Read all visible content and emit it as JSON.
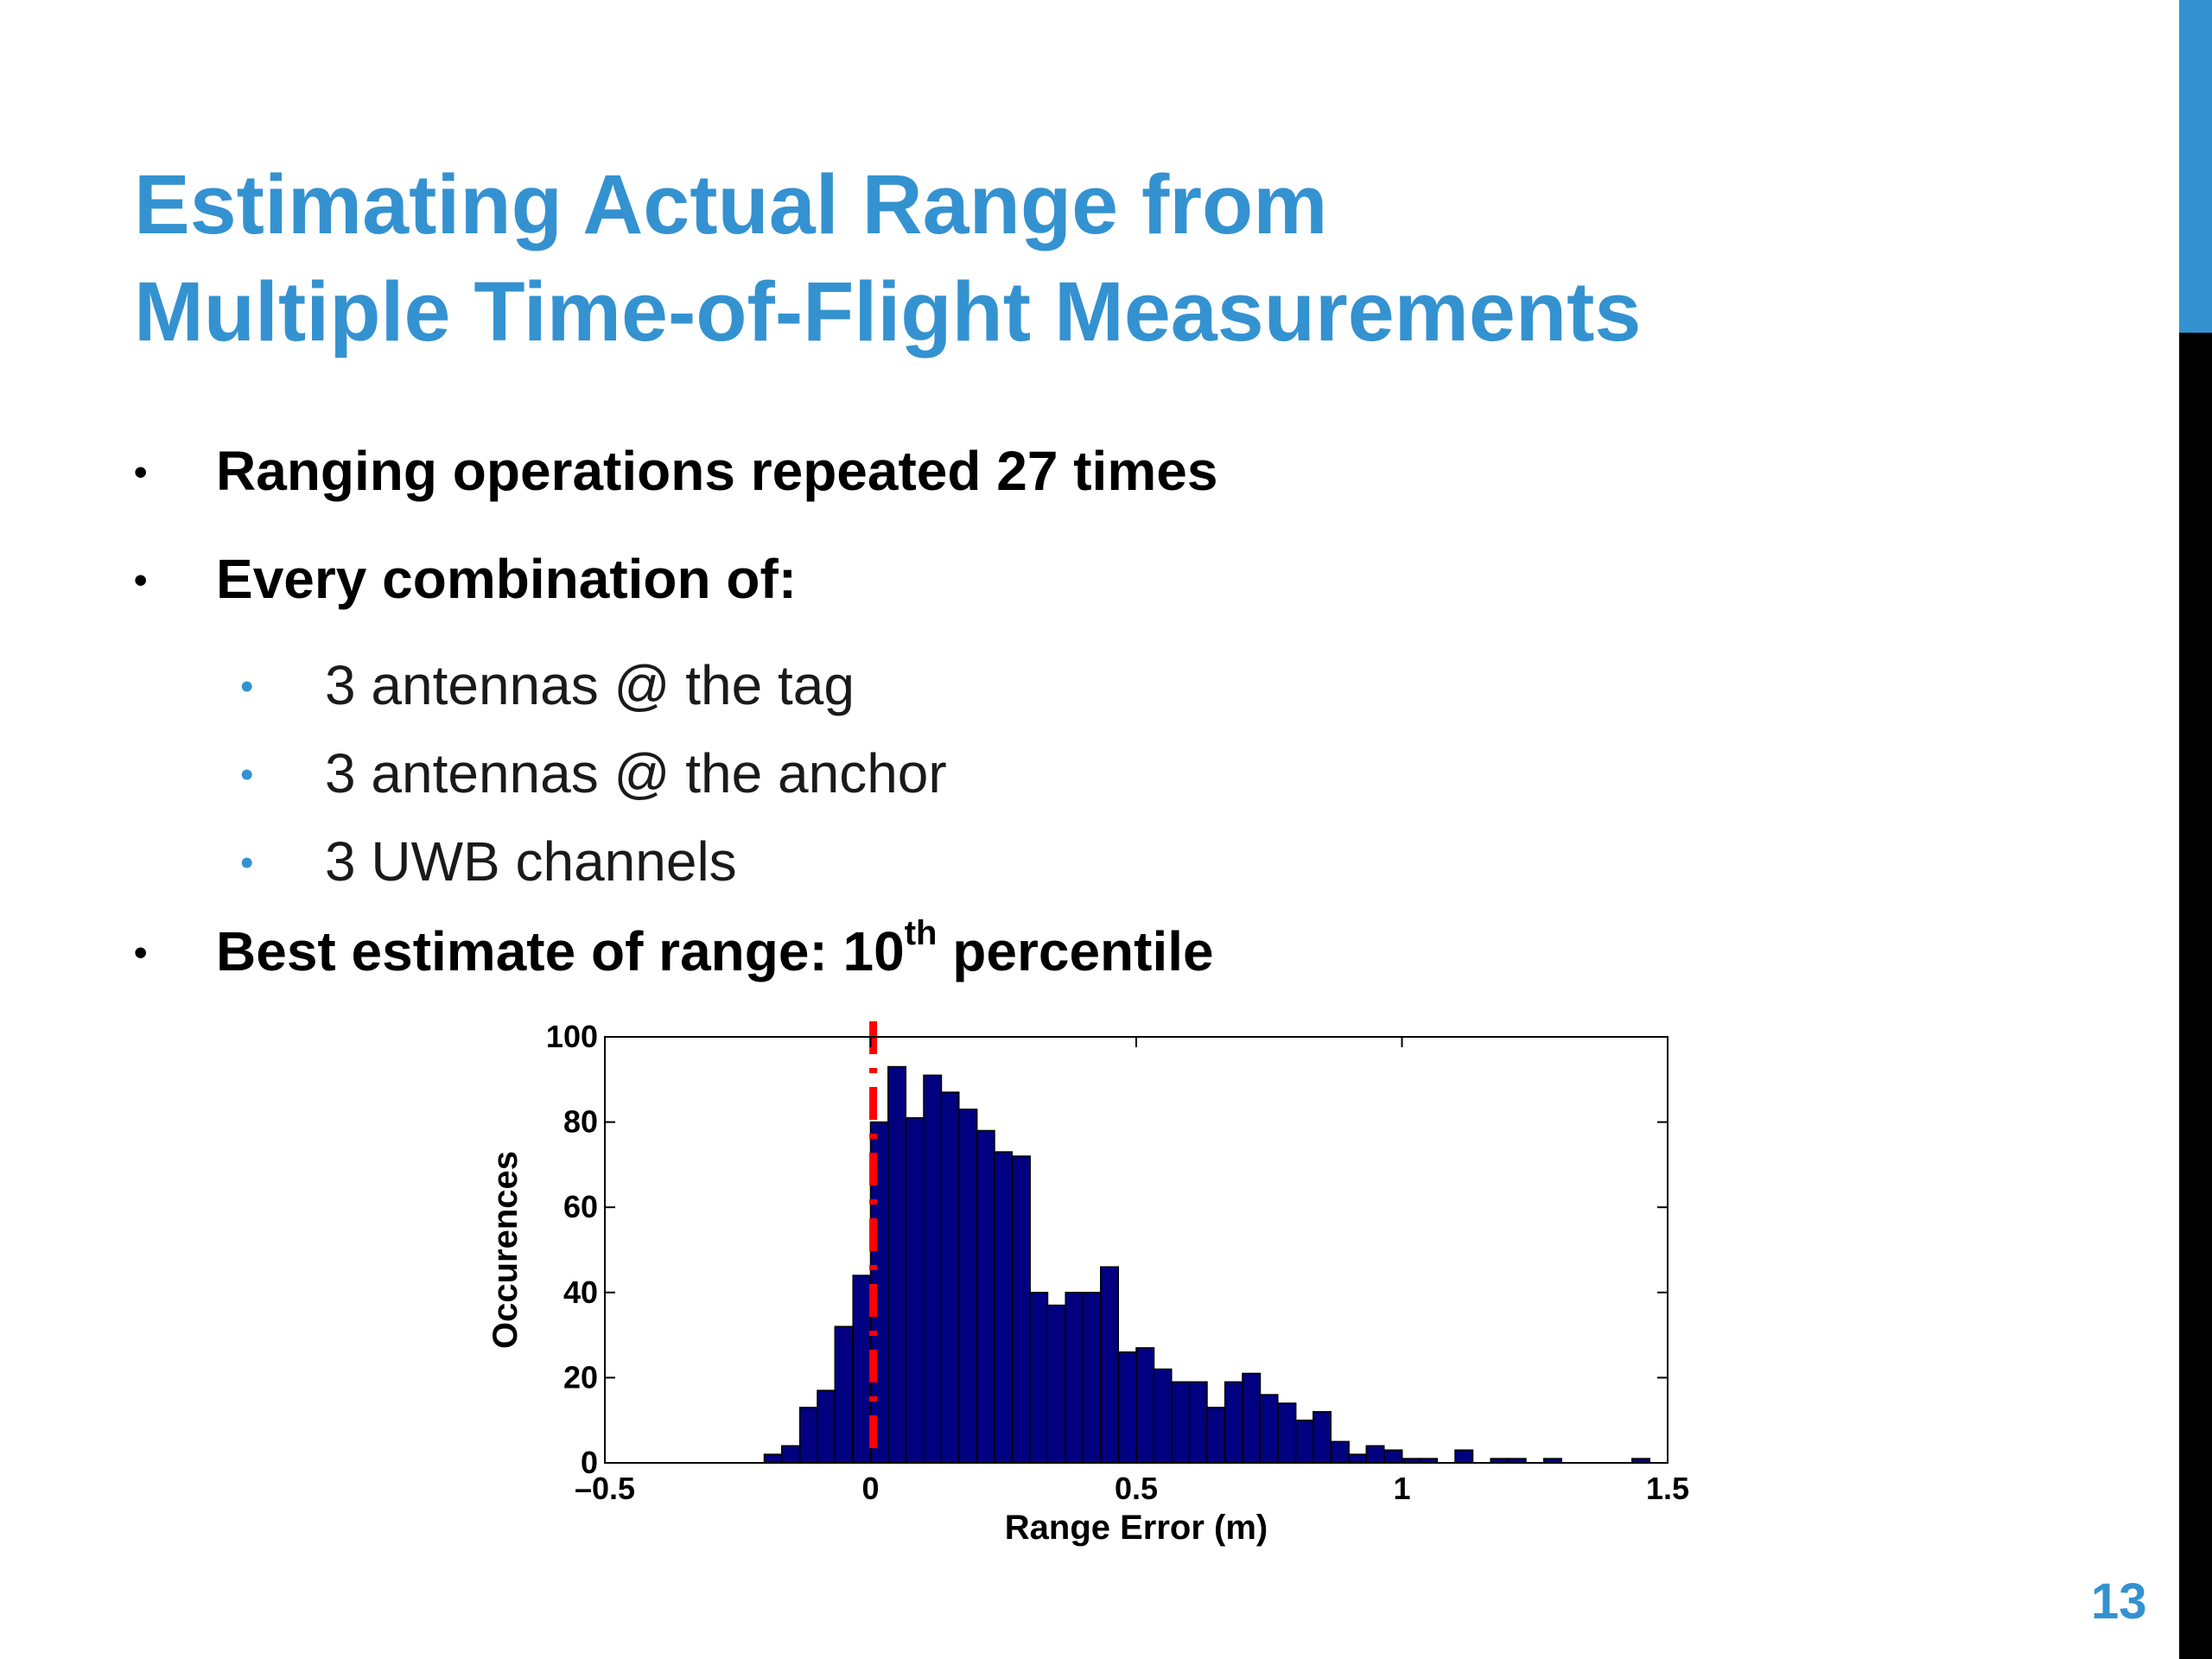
{
  "slide": {
    "title_line1": "Estimating Actual Range from",
    "title_line2": "Multiple Time-of-Flight Measurements",
    "bullets": [
      "Ranging operations repeated 27 times",
      "Every combination of:",
      "Best estimate of range: 10",
      "th",
      " percentile"
    ],
    "sub_bullets": [
      "3 antennas @ the tag",
      "3 antennas @ the anchor",
      "3 UWB channels"
    ],
    "page_number": "13"
  },
  "colors": {
    "accent": "#3492d1",
    "sidebar_bottom": "#000000",
    "bar_fill": "#000080",
    "marker": "#ff0000",
    "text": "#000000"
  },
  "chart_data": {
    "type": "bar",
    "xlabel": "Range Error (m)",
    "ylabel": "Occurences",
    "xlim": [
      -0.5,
      1.5
    ],
    "ylim": [
      0,
      100
    ],
    "xticks": [
      -0.5,
      0,
      0.5,
      1,
      1.5
    ],
    "xtick_labels": [
      "–0.5",
      "0",
      "0.5",
      "1",
      "1.5"
    ],
    "yticks": [
      0,
      20,
      40,
      60,
      80,
      100
    ],
    "ytick_labels": [
      "0",
      "20",
      "40",
      "60",
      "80",
      "100"
    ],
    "grid": false,
    "bin_width": 0.0333,
    "bin_starts": [
      -0.2,
      -0.167,
      -0.133,
      -0.1,
      -0.067,
      -0.033,
      0.0,
      0.033,
      0.067,
      0.1,
      0.133,
      0.167,
      0.2,
      0.233,
      0.267,
      0.3,
      0.333,
      0.367,
      0.4,
      0.433,
      0.467,
      0.5,
      0.533,
      0.567,
      0.6,
      0.633,
      0.667,
      0.7,
      0.733,
      0.767,
      0.8,
      0.833,
      0.867,
      0.9,
      0.933,
      0.967,
      1.0,
      1.033,
      1.067,
      1.1,
      1.133,
      1.167,
      1.2,
      1.233,
      1.267,
      1.3,
      1.333,
      1.367,
      1.4,
      1.433
    ],
    "values": [
      2,
      4,
      13,
      17,
      32,
      44,
      80,
      93,
      81,
      91,
      87,
      83,
      78,
      73,
      72,
      40,
      37,
      40,
      40,
      46,
      26,
      27,
      22,
      19,
      19,
      13,
      19,
      21,
      16,
      14,
      10,
      12,
      5,
      2,
      4,
      3,
      1,
      1,
      0,
      3,
      0,
      1,
      1,
      0,
      1,
      0,
      0,
      0,
      0,
      1
    ],
    "percentile_line_x": 0.005
  }
}
